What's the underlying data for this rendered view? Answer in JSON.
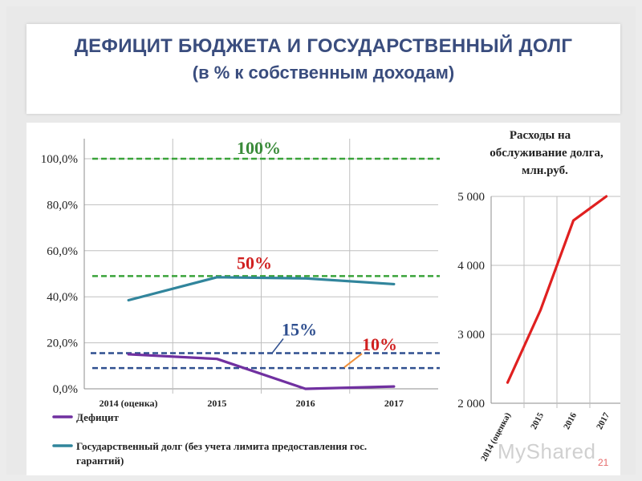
{
  "slide": {
    "title_line1": "ДЕФИЦИТ БЮДЖЕТА И ГОСУДАРСТВЕННЫЙ ДОЛГ",
    "title_line2": "(в % к собственным доходам)",
    "slide_number": "21",
    "watermark": "MyShared"
  },
  "colors": {
    "title": "#3a4d7e",
    "deficit": "#7030a0",
    "debt": "#31859c",
    "limit_100": "#3aa33a",
    "limit_50": "#3aa33a",
    "limit_15": "#2f4f8f",
    "limit_10": "#2f4f8f",
    "expenses": "#e02020",
    "label_100": "#3a8a3a",
    "label_50": "#d02020",
    "label_15": "#2f4f8f",
    "label_10": "#d02020",
    "annotation_leader_15": "#2f4f8f",
    "annotation_leader_10": "#f0903a"
  },
  "chart_data": [
    {
      "type": "line",
      "categories": [
        "2014 (оценка)",
        "2015",
        "2016",
        "2017"
      ],
      "ylim": [
        0,
        100
      ],
      "y_ticks": [
        "0,0%",
        "20,0%",
        "40,0%",
        "60,0%",
        "80,0%",
        "100,0%"
      ],
      "y_tick_values": [
        0,
        20,
        40,
        60,
        80,
        100
      ],
      "grid": "horizontal",
      "legend_position": "bottom",
      "series": [
        {
          "name": "Дефицит",
          "values": [
            15,
            13,
            0,
            1
          ]
        },
        {
          "name": "Государственный долг (без учета лимита предоставления гос. гарантий)",
          "values": [
            38.5,
            48.5,
            48,
            45.5
          ]
        }
      ],
      "reference_lines": [
        {
          "value": 100,
          "label": "100%"
        },
        {
          "value": 49,
          "label": "50%"
        },
        {
          "value": 15.5,
          "label": "15%"
        },
        {
          "value": 9,
          "label": "10%"
        }
      ]
    },
    {
      "type": "line",
      "title": "Расходы на обслуживание долга, млн.руб.",
      "title_lines": [
        "Расходы на",
        "обслуживание долга,",
        "млн.руб."
      ],
      "categories": [
        "2014 (оценка)",
        "2015",
        "2016",
        "2017"
      ],
      "ylim": [
        2000,
        5000
      ],
      "y_ticks": [
        "2 000",
        "3 000",
        "4 000",
        "5 000"
      ],
      "y_tick_values": [
        2000,
        3000,
        4000,
        5000
      ],
      "grid": "horizontal",
      "series": [
        {
          "values": [
            2300,
            3350,
            4650,
            5000
          ]
        }
      ]
    }
  ]
}
